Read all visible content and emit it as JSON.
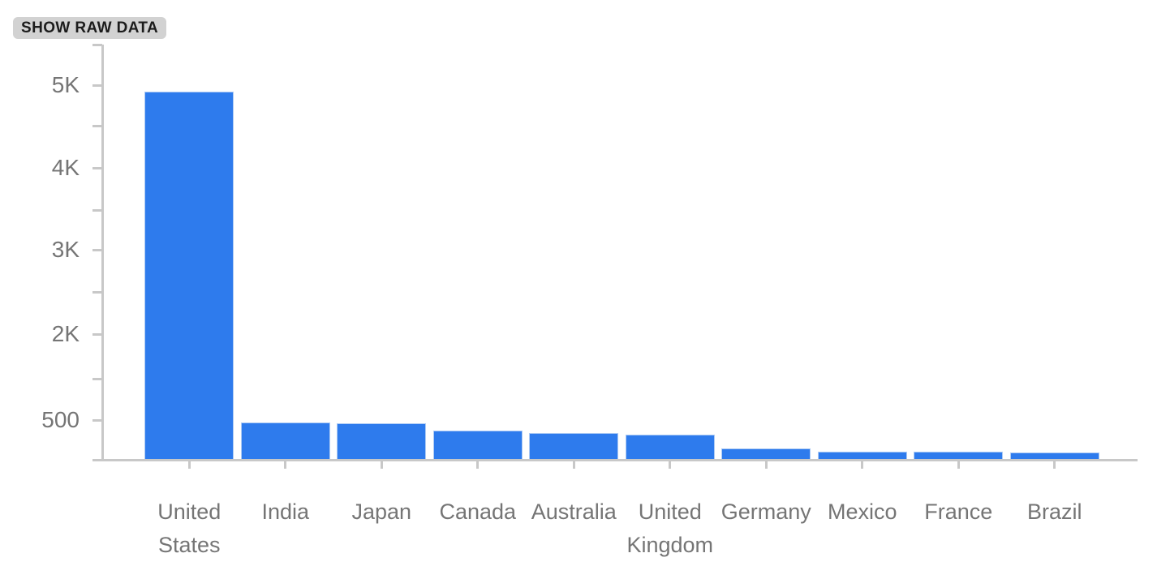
{
  "toolbar": {
    "show_raw_data_label": "SHOW RAW DATA"
  },
  "chart_data": {
    "type": "bar",
    "title": "",
    "xlabel": "",
    "ylabel": "",
    "categories": [
      "United States",
      "India",
      "Japan",
      "Canada",
      "Australia",
      "United Kingdom",
      "Germany",
      "Mexico",
      "France",
      "Brazil"
    ],
    "values": [
      4900,
      490,
      475,
      375,
      345,
      325,
      140,
      95,
      95,
      85
    ],
    "y_tick_labels": [
      "5K",
      "4K",
      "3K",
      "2K",
      "500"
    ],
    "ylim": [
      0,
      5540
    ],
    "grid": false,
    "legend": "none",
    "bar_color": "#2e7bed",
    "bar_border_color": "#aecbf4",
    "axis_color": "#c8c8c8",
    "tick_label_color": "#757575"
  }
}
